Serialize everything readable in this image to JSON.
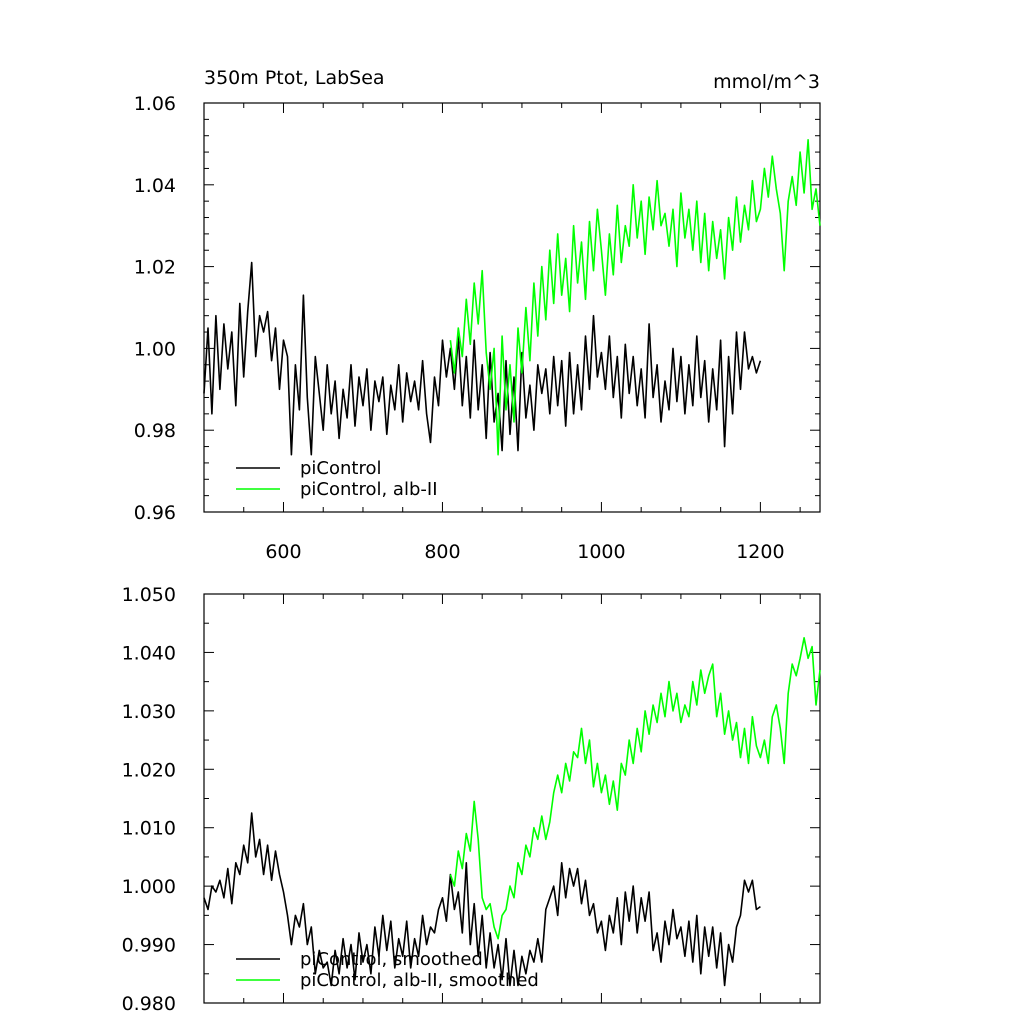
{
  "chart_data": [
    {
      "type": "line",
      "title_left": "350m Ptot, LabSea",
      "title_right": "mmol/m^3",
      "xlabel": "",
      "ylabel": "",
      "xlim": [
        500,
        1275
      ],
      "ylim": [
        0.96,
        1.06
      ],
      "xticks": [
        600,
        800,
        1000,
        1200
      ],
      "xtick_labels": [
        "600",
        "800",
        "1000",
        "1200"
      ],
      "yticks": [
        0.96,
        0.98,
        1.0,
        1.02,
        1.04,
        1.06
      ],
      "ytick_labels": [
        "0.96",
        "0.98",
        "1.00",
        "1.02",
        "1.04",
        "1.06"
      ],
      "grid": false,
      "legend_position": "bottom-left",
      "series": [
        {
          "name": "piControl",
          "color": "#000000",
          "x": [
            500,
            505,
            510,
            515,
            520,
            525,
            530,
            535,
            540,
            545,
            550,
            555,
            560,
            565,
            570,
            575,
            580,
            585,
            590,
            595,
            600,
            605,
            610,
            615,
            620,
            625,
            630,
            635,
            640,
            645,
            650,
            655,
            660,
            665,
            670,
            675,
            680,
            685,
            690,
            695,
            700,
            705,
            710,
            715,
            720,
            725,
            730,
            735,
            740,
            745,
            750,
            755,
            760,
            765,
            770,
            775,
            780,
            785,
            790,
            795,
            800,
            805,
            810,
            815,
            820,
            825,
            830,
            835,
            840,
            845,
            850,
            855,
            860,
            865,
            870,
            875,
            880,
            885,
            890,
            895,
            900,
            905,
            910,
            915,
            920,
            925,
            930,
            935,
            940,
            945,
            950,
            955,
            960,
            965,
            970,
            975,
            980,
            985,
            990,
            995,
            1000,
            1005,
            1010,
            1015,
            1020,
            1025,
            1030,
            1035,
            1040,
            1045,
            1050,
            1055,
            1060,
            1065,
            1070,
            1075,
            1080,
            1085,
            1090,
            1095,
            1100,
            1105,
            1110,
            1115,
            1120,
            1125,
            1130,
            1135,
            1140,
            1145,
            1150,
            1155,
            1160,
            1165,
            1170,
            1175,
            1180,
            1185,
            1190,
            1195,
            1200
          ],
          "values": [
            0.989,
            1.005,
            0.984,
            1.008,
            0.99,
            1.006,
            0.995,
            1.004,
            0.986,
            1.011,
            0.993,
            1.009,
            1.021,
            0.998,
            1.008,
            1.004,
            1.009,
            0.997,
            1.005,
            0.99,
            1.002,
            0.998,
            0.974,
            0.996,
            0.985,
            1.013,
            0.988,
            0.974,
            0.998,
            0.989,
            0.98,
            0.996,
            0.984,
            0.992,
            0.978,
            0.99,
            0.983,
            0.996,
            0.981,
            0.993,
            0.986,
            0.995,
            0.98,
            0.992,
            0.987,
            0.993,
            0.979,
            0.991,
            0.985,
            0.996,
            0.982,
            0.994,
            0.987,
            0.992,
            0.985,
            0.997,
            0.984,
            0.977,
            0.993,
            0.986,
            1.002,
            0.993,
            1.0,
            0.99,
            1.003,
            0.986,
            0.998,
            0.983,
            1.002,
            0.985,
            0.996,
            0.978,
            0.999,
            0.982,
            0.989,
            0.975,
            0.997,
            0.979,
            0.993,
            0.975,
            0.999,
            0.983,
            0.991,
            0.98,
            0.996,
            0.989,
            0.995,
            0.984,
            0.998,
            0.986,
            0.997,
            0.981,
            0.999,
            0.984,
            0.996,
            0.985,
            1.003,
            0.99,
            1.008,
            0.993,
            0.999,
            0.99,
            1.003,
            0.988,
            0.998,
            0.983,
            1.001,
            0.989,
            0.998,
            0.986,
            0.995,
            0.983,
            1.006,
            0.988,
            0.996,
            0.982,
            0.992,
            0.985,
            1.0,
            0.987,
            0.998,
            0.984,
            0.996,
            0.986,
            1.003,
            0.988,
            0.997,
            0.982,
            0.995,
            0.985,
            1.002,
            0.976,
            0.998,
            0.984,
            1.004,
            0.99,
            1.004,
            0.995,
            0.998,
            0.994,
            0.997
          ]
        },
        {
          "name": "piControl, alb-II",
          "color": "#00ff00",
          "x": [
            810,
            815,
            820,
            825,
            830,
            835,
            840,
            845,
            850,
            855,
            860,
            865,
            870,
            875,
            880,
            885,
            890,
            895,
            900,
            905,
            910,
            915,
            920,
            925,
            930,
            935,
            940,
            945,
            950,
            955,
            960,
            965,
            970,
            975,
            980,
            985,
            990,
            995,
            1000,
            1005,
            1010,
            1015,
            1020,
            1025,
            1030,
            1035,
            1040,
            1045,
            1050,
            1055,
            1060,
            1065,
            1070,
            1075,
            1080,
            1085,
            1090,
            1095,
            1100,
            1105,
            1110,
            1115,
            1120,
            1125,
            1130,
            1135,
            1140,
            1145,
            1150,
            1155,
            1160,
            1165,
            1170,
            1175,
            1180,
            1185,
            1190,
            1195,
            1200,
            1205,
            1210,
            1215,
            1220,
            1225,
            1230,
            1235,
            1240,
            1245,
            1250,
            1255,
            1260,
            1265,
            1270,
            1275
          ],
          "values": [
            1.002,
            0.994,
            1.005,
            0.998,
            1.012,
            1.001,
            1.016,
            1.006,
            1.019,
            0.999,
            0.99,
            1.0,
            0.974,
            1.003,
            0.985,
            0.996,
            0.982,
            1.005,
            0.994,
            1.01,
            0.997,
            1.016,
            1.003,
            1.02,
            1.007,
            1.024,
            1.011,
            1.028,
            1.013,
            1.022,
            1.009,
            1.03,
            1.016,
            1.026,
            1.012,
            1.031,
            1.019,
            1.034,
            1.024,
            1.013,
            1.028,
            1.018,
            1.035,
            1.021,
            1.03,
            1.025,
            1.04,
            1.027,
            1.036,
            1.023,
            1.037,
            1.029,
            1.041,
            1.03,
            1.033,
            1.025,
            1.034,
            1.02,
            1.038,
            1.027,
            1.034,
            1.024,
            1.036,
            1.021,
            1.033,
            1.019,
            1.031,
            1.022,
            1.029,
            1.017,
            1.032,
            1.024,
            1.037,
            1.026,
            1.035,
            1.029,
            1.041,
            1.031,
            1.034,
            1.044,
            1.037,
            1.047,
            1.039,
            1.033,
            1.019,
            1.036,
            1.042,
            1.035,
            1.048,
            1.038,
            1.051,
            1.034,
            1.039,
            1.03
          ]
        }
      ]
    },
    {
      "type": "line",
      "title_left": "",
      "title_right": "",
      "xlabel": "",
      "ylabel": "",
      "xlim": [
        500,
        1275
      ],
      "ylim": [
        0.98,
        1.05
      ],
      "xticks": [
        600,
        800,
        1000,
        1200
      ],
      "xtick_labels": [],
      "yticks": [
        0.98,
        0.99,
        1.0,
        1.01,
        1.02,
        1.03,
        1.04,
        1.05
      ],
      "ytick_labels": [
        "0.980",
        "0.990",
        "1.000",
        "1.010",
        "1.020",
        "1.030",
        "1.040",
        "1.050"
      ],
      "grid": false,
      "legend_position": "bottom-left",
      "series": [
        {
          "name": "piControl, smoothed",
          "color": "#000000",
          "x": [
            500,
            505,
            510,
            515,
            520,
            525,
            530,
            535,
            540,
            545,
            550,
            555,
            560,
            565,
            570,
            575,
            580,
            585,
            590,
            595,
            600,
            605,
            610,
            615,
            620,
            625,
            630,
            635,
            640,
            645,
            650,
            655,
            660,
            665,
            670,
            675,
            680,
            685,
            690,
            695,
            700,
            705,
            710,
            715,
            720,
            725,
            730,
            735,
            740,
            745,
            750,
            755,
            760,
            765,
            770,
            775,
            780,
            785,
            790,
            795,
            800,
            805,
            810,
            815,
            820,
            825,
            830,
            835,
            840,
            845,
            850,
            855,
            860,
            865,
            870,
            875,
            880,
            885,
            890,
            895,
            900,
            905,
            910,
            915,
            920,
            925,
            930,
            935,
            940,
            945,
            950,
            955,
            960,
            965,
            970,
            975,
            980,
            985,
            990,
            995,
            1000,
            1005,
            1010,
            1015,
            1020,
            1025,
            1030,
            1035,
            1040,
            1045,
            1050,
            1055,
            1060,
            1065,
            1070,
            1075,
            1080,
            1085,
            1090,
            1095,
            1100,
            1105,
            1110,
            1115,
            1120,
            1125,
            1130,
            1135,
            1140,
            1145,
            1150,
            1155,
            1160,
            1165,
            1170,
            1175,
            1180,
            1185,
            1190,
            1195,
            1200
          ],
          "values": [
            0.998,
            0.996,
            1.0,
            0.999,
            1.001,
            0.998,
            1.003,
            0.997,
            1.004,
            1.002,
            1.007,
            1.004,
            1.0125,
            1.005,
            1.008,
            1.002,
            1.007,
            1.001,
            1.006,
            1.002,
            0.999,
            0.995,
            0.99,
            0.995,
            0.993,
            0.997,
            0.99,
            0.993,
            0.985,
            0.989,
            0.986,
            0.987,
            0.983,
            0.989,
            0.985,
            0.991,
            0.986,
            0.99,
            0.984,
            0.992,
            0.987,
            0.99,
            0.985,
            0.993,
            0.988,
            0.995,
            0.989,
            0.994,
            0.986,
            0.991,
            0.988,
            0.994,
            0.986,
            0.991,
            0.988,
            0.995,
            0.99,
            0.993,
            0.992,
            0.996,
            0.998,
            0.994,
            1.002,
            0.996,
            0.999,
            0.992,
            1.004,
            0.99,
            0.997,
            0.988,
            0.995,
            0.986,
            0.992,
            0.986,
            0.99,
            0.984,
            0.991,
            0.983,
            0.989,
            0.983,
            0.988,
            0.985,
            0.989,
            0.987,
            0.991,
            0.987,
            0.996,
            0.998,
            1.0,
            0.995,
            1.004,
            0.998,
            1.003,
            1.0,
            1.003,
            0.997,
            1.001,
            0.995,
            0.997,
            0.992,
            0.994,
            0.989,
            0.995,
            0.992,
            0.998,
            0.99,
            0.999,
            0.994,
            1.0,
            0.992,
            0.998,
            0.994,
            0.999,
            0.989,
            0.992,
            0.987,
            0.994,
            0.99,
            0.996,
            0.991,
            0.993,
            0.988,
            0.994,
            0.987,
            0.995,
            0.985,
            0.993,
            0.988,
            0.993,
            0.986,
            0.992,
            0.983,
            0.99,
            0.987,
            0.993,
            0.995,
            1.001,
            0.999,
            1.001,
            0.996,
            0.9965
          ]
        },
        {
          "name": "piControl, alb-II, smoothed",
          "color": "#00ff00",
          "x": [
            810,
            815,
            820,
            825,
            830,
            835,
            840,
            845,
            850,
            855,
            860,
            865,
            870,
            875,
            880,
            885,
            890,
            895,
            900,
            905,
            910,
            915,
            920,
            925,
            930,
            935,
            940,
            945,
            950,
            955,
            960,
            965,
            970,
            975,
            980,
            985,
            990,
            995,
            1000,
            1005,
            1010,
            1015,
            1020,
            1025,
            1030,
            1035,
            1040,
            1045,
            1050,
            1055,
            1060,
            1065,
            1070,
            1075,
            1080,
            1085,
            1090,
            1095,
            1100,
            1105,
            1110,
            1115,
            1120,
            1125,
            1130,
            1135,
            1140,
            1145,
            1150,
            1155,
            1160,
            1165,
            1170,
            1175,
            1180,
            1185,
            1190,
            1195,
            1200,
            1205,
            1210,
            1215,
            1220,
            1225,
            1230,
            1235,
            1240,
            1245,
            1250,
            1255,
            1260,
            1265,
            1270,
            1275
          ],
          "values": [
            1.002,
            1.0,
            1.006,
            1.003,
            1.009,
            1.006,
            1.0145,
            1.008,
            0.998,
            0.996,
            0.997,
            0.993,
            0.991,
            0.995,
            0.996,
            1.0,
            0.998,
            1.004,
            1.002,
            1.007,
            1.005,
            1.01,
            1.008,
            1.012,
            1.008,
            1.011,
            1.016,
            1.019,
            1.016,
            1.021,
            1.018,
            1.023,
            1.022,
            1.027,
            1.021,
            1.025,
            1.017,
            1.021,
            1.016,
            1.019,
            1.014,
            1.018,
            1.013,
            1.021,
            1.019,
            1.025,
            1.021,
            1.027,
            1.023,
            1.03,
            1.026,
            1.031,
            1.028,
            1.033,
            1.029,
            1.035,
            1.03,
            1.033,
            1.028,
            1.031,
            1.029,
            1.035,
            1.031,
            1.037,
            1.033,
            1.036,
            1.038,
            1.029,
            1.033,
            1.026,
            1.03,
            1.025,
            1.028,
            1.022,
            1.027,
            1.021,
            1.029,
            1.024,
            1.022,
            1.025,
            1.021,
            1.029,
            1.031,
            1.027,
            1.021,
            1.033,
            1.038,
            1.036,
            1.039,
            1.0425,
            1.039,
            1.041,
            1.031,
            1.037
          ]
        }
      ]
    }
  ]
}
